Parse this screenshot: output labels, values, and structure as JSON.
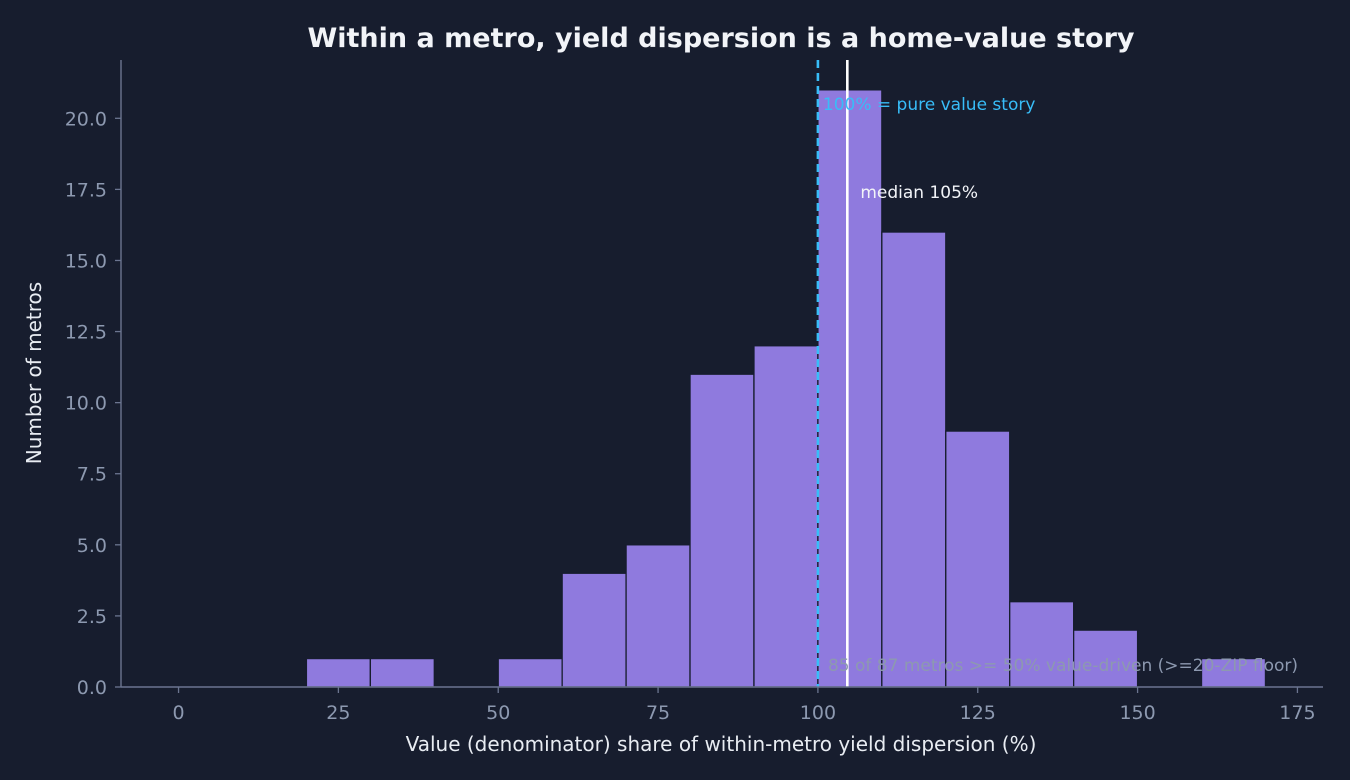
{
  "chart_data": {
    "type": "bar",
    "title": "Within a metro, yield dispersion is a home-value story",
    "xlabel": "Value (denominator) share of within-metro yield dispersion  (%)",
    "ylabel": "Number of metros",
    "bins": [
      {
        "x0": 20,
        "x1": 30,
        "count": 1
      },
      {
        "x0": 30,
        "x1": 40,
        "count": 1
      },
      {
        "x0": 50,
        "x1": 60,
        "count": 1
      },
      {
        "x0": 60,
        "x1": 70,
        "count": 4
      },
      {
        "x0": 70,
        "x1": 80,
        "count": 5
      },
      {
        "x0": 80,
        "x1": 90,
        "count": 11
      },
      {
        "x0": 90,
        "x1": 100,
        "count": 12
      },
      {
        "x0": 100,
        "x1": 110,
        "count": 21
      },
      {
        "x0": 110,
        "x1": 120,
        "count": 16
      },
      {
        "x0": 120,
        "x1": 130,
        "count": 9
      },
      {
        "x0": 130,
        "x1": 140,
        "count": 3
      },
      {
        "x0": 140,
        "x1": 150,
        "count": 2
      },
      {
        "x0": 160,
        "x1": 170,
        "count": 1
      }
    ],
    "xlim": [
      -9,
      179
    ],
    "ylim": [
      0,
      22.05
    ],
    "xticks": [
      0,
      25,
      50,
      75,
      100,
      125,
      150,
      175
    ],
    "xtick_labels": [
      "0",
      "25",
      "50",
      "75",
      "100",
      "125",
      "150",
      "175"
    ],
    "yticks": [
      0,
      2.5,
      5,
      7.5,
      10,
      12.5,
      15,
      17.5,
      20
    ],
    "ytick_labels": [
      "0.0",
      "2.5",
      "5.0",
      "7.5",
      "10.0",
      "12.5",
      "15.0",
      "17.5",
      "20.0"
    ],
    "grid": false,
    "reference_lines": [
      {
        "x": 100,
        "style": "dashed",
        "color": "#38bdf8",
        "label": "100% = pure value story",
        "label_y": 20.5
      },
      {
        "x": 104.6,
        "style": "solid",
        "color": "#ffffff",
        "label": "median 105%",
        "label_y": 17.4
      }
    ],
    "footnote": "85 of 87 metros >= 50% value-driven  (>=20-ZIP floor)",
    "colors": {
      "background": "#171d2e",
      "bar": "#8f7ade",
      "bar_edge": "#171d2e",
      "axis": "#6b7590",
      "tick_label": "#8d99b0",
      "text": "#e8ecf2",
      "footnote": "#8d99b0"
    }
  }
}
